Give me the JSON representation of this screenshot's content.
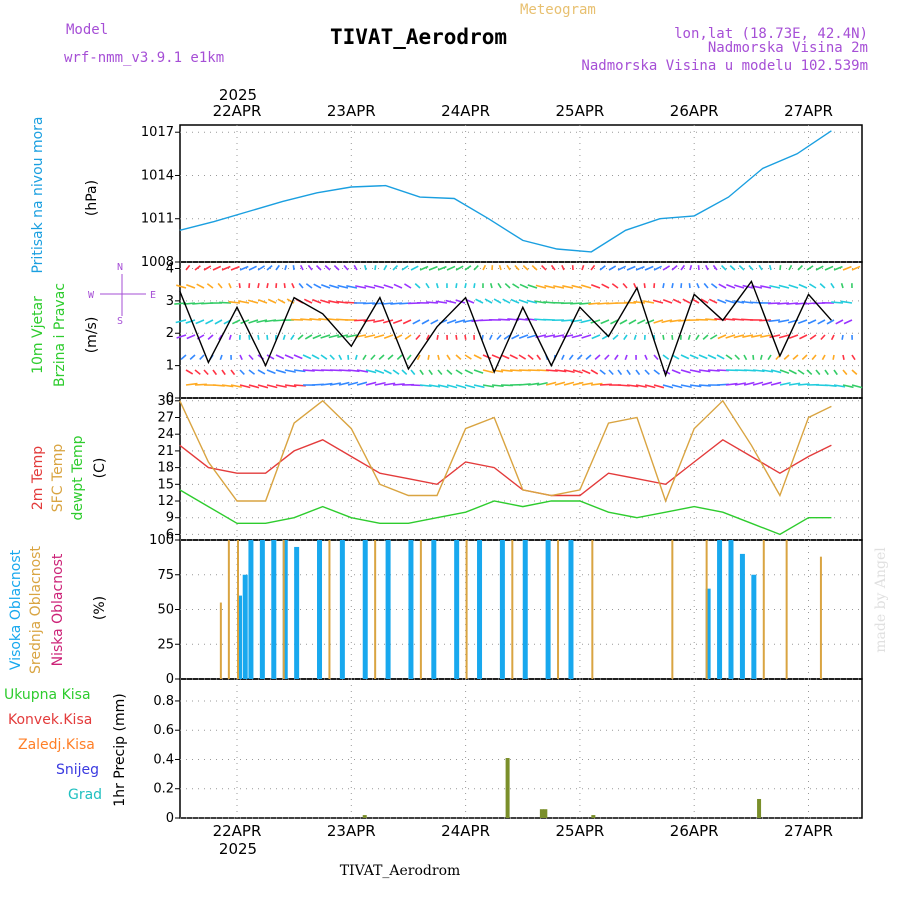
{
  "header": {
    "model_label": "Model",
    "model_name": "wrf-nmm_v3.9.1 e1km",
    "meteogram": "Meteogram",
    "station": "TIVAT_Aerodrom",
    "lonlat": "lon,lat (18.73E, 42.4N)",
    "elevation": "Nadmorska Visina 2m",
    "model_elevation": "Nadmorska Visina u modelu 102.539m",
    "credit": "made by Angel",
    "footer_station": "TIVAT_Aerodrom",
    "year_top": "2025",
    "year_bottom": "2025"
  },
  "dates": [
    "22APR",
    "23APR",
    "24APR",
    "25APR",
    "26APR",
    "27APR"
  ],
  "colors": {
    "pressure": "#1a9fe0",
    "temp2m": "#e33b3b",
    "sfc": "#d9a441",
    "dewpt": "#2ecc2e",
    "high_cloud": "#18a8ee",
    "mid_cloud": "#d9a441",
    "low_cloud": "#cc2277",
    "precip": "#7a8f2a"
  },
  "labels": {
    "pressure": [
      "Pritisak na nivou mora",
      "(hPa)"
    ],
    "wind": [
      "10m Vjetar",
      "Brzina i Pravac",
      "(m/s)"
    ],
    "compass": {
      "n": "N",
      "w": "W",
      "e": "E",
      "s": "S"
    },
    "temp": [
      "2m Temp",
      "SFC Temp",
      "dewpt Temp",
      "(C)"
    ],
    "cloud": [
      "Visoka Oblacnost",
      "Srednja Oblacnost",
      "Niska Oblacnost",
      "(%)"
    ],
    "precip_legend": [
      "Ukupna Kisa",
      "Konvek.Kisa",
      "Zaledj.Kisa",
      "Snijeg",
      "Grad"
    ],
    "precip_axis": "1hr Precip (mm)"
  },
  "chart_data": [
    {
      "type": "line",
      "panel": "pressure",
      "ylim": [
        1008,
        1017.5
      ],
      "yticks": [
        "1008",
        "1011",
        "1014",
        "1017"
      ],
      "x_days": [
        0,
        0.3,
        0.6,
        0.9,
        1.2,
        1.5,
        1.8,
        2.1,
        2.4,
        2.7,
        3.0,
        3.3,
        3.6,
        3.9,
        4.2,
        4.5,
        4.8,
        5.1,
        5.4,
        5.7
      ],
      "series": [
        {
          "values": [
            1010.2,
            1010.8,
            1011.5,
            1012.2,
            1012.8,
            1013.2,
            1013.3,
            1012.5,
            1012.4,
            1011.0,
            1009.5,
            1008.9,
            1008.7,
            1010.2,
            1011.0,
            1011.2,
            1012.5,
            1014.5,
            1015.5,
            1017.1
          ]
        }
      ]
    },
    {
      "type": "line",
      "panel": "wind",
      "ylim": [
        0,
        4.2
      ],
      "yticks": [
        "0",
        "1",
        "2",
        "3",
        "4"
      ],
      "x_days": [
        0,
        0.25,
        0.5,
        0.75,
        1.0,
        1.25,
        1.5,
        1.75,
        2.0,
        2.25,
        2.5,
        2.75,
        3.0,
        3.25,
        3.5,
        3.75,
        4.0,
        4.25,
        4.5,
        4.75,
        5.0,
        5.25,
        5.5,
        5.7
      ],
      "series": [
        {
          "values": [
            3.3,
            1.1,
            2.8,
            1.0,
            3.1,
            2.6,
            1.6,
            3.1,
            0.9,
            2.2,
            3.1,
            0.8,
            2.8,
            1.0,
            2.8,
            1.9,
            3.4,
            0.7,
            3.2,
            2.4,
            3.6,
            1.3,
            3.2,
            2.4
          ]
        }
      ]
    },
    {
      "type": "line",
      "panel": "temperature",
      "ylim": [
        5,
        30.5
      ],
      "yticks": [
        "6",
        "9",
        "12",
        "15",
        "18",
        "21",
        "24",
        "27",
        "30"
      ],
      "x_days": [
        0,
        0.25,
        0.5,
        0.75,
        1.0,
        1.25,
        1.5,
        1.75,
        2.0,
        2.25,
        2.5,
        2.75,
        3.0,
        3.25,
        3.5,
        3.75,
        4.0,
        4.25,
        4.5,
        4.75,
        5.0,
        5.25,
        5.5,
        5.7
      ],
      "series": [
        {
          "values": [
            22,
            18,
            17,
            17,
            21,
            23,
            20,
            17,
            16,
            15,
            19,
            18,
            14,
            13,
            13,
            17,
            16,
            15,
            19,
            23,
            20,
            17,
            20,
            22
          ]
        },
        {
          "values": [
            30,
            19,
            12,
            12,
            26,
            30,
            25,
            15,
            13,
            13,
            25,
            27,
            14,
            13,
            14,
            26,
            27,
            12,
            25,
            30,
            22,
            13,
            27,
            29
          ]
        },
        {
          "values": [
            14,
            11,
            8,
            8,
            9,
            11,
            9,
            8,
            8,
            9,
            10,
            12,
            11,
            12,
            12,
            10,
            9,
            10,
            11,
            10,
            8,
            6,
            9,
            9
          ]
        }
      ]
    },
    {
      "type": "bar",
      "panel": "cloud",
      "ylim": [
        0,
        100
      ],
      "yticks": [
        "0",
        "25",
        "50",
        "75",
        "100"
      ],
      "series": [
        {
          "x_days": [
            0.5,
            0.55,
            0.6,
            0.7,
            0.8,
            0.9,
            1.0,
            1.2,
            1.4,
            1.6,
            1.8,
            2.0,
            2.2,
            2.4,
            2.6,
            2.8,
            3.0,
            3.2,
            3.4,
            4.6,
            4.7,
            4.8,
            4.9,
            5.0
          ],
          "values": [
            60,
            75,
            100,
            100,
            100,
            100,
            95,
            100,
            100,
            100,
            100,
            100,
            100,
            100,
            100,
            100,
            100,
            100,
            100,
            65,
            100,
            100,
            90,
            75
          ]
        },
        {
          "x_days": [
            0.35,
            0.42,
            0.5,
            0.9,
            1.3,
            1.7,
            2.1,
            2.5,
            2.9,
            3.3,
            3.6,
            4.3,
            4.6,
            5.1,
            5.3,
            5.6
          ],
          "values": [
            55,
            100,
            100,
            100,
            100,
            100,
            100,
            100,
            100,
            100,
            100,
            100,
            100,
            100,
            100,
            88
          ]
        }
      ]
    },
    {
      "type": "bar",
      "panel": "precip",
      "ylim": [
        0,
        0.95
      ],
      "yticks": [
        "0",
        "0.2",
        "0.4",
        "0.6",
        "0.8"
      ],
      "x_days": [
        1.6,
        2.85,
        3.15,
        3.18,
        3.6,
        5.05
      ],
      "values": [
        0.02,
        0.41,
        0.06,
        0.06,
        0.02,
        0.13
      ]
    }
  ]
}
